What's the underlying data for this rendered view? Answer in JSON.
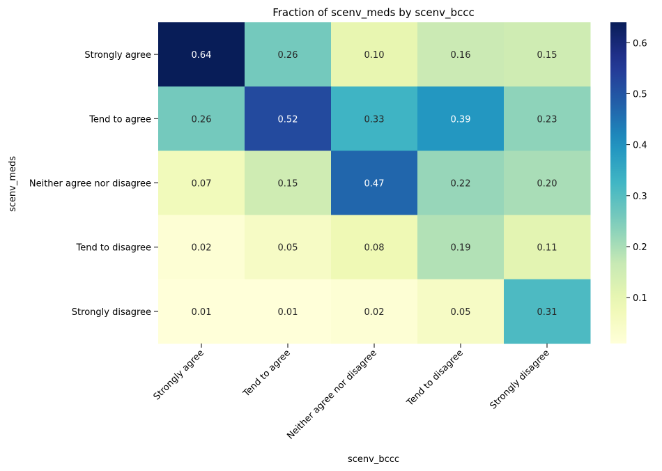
{
  "chart_data": {
    "type": "heatmap",
    "title": "Fraction of scenv_meds by scenv_bccc",
    "xlabel": "scenv_bccc",
    "ylabel": "scenv_meds",
    "x_categories": [
      "Strongly agree",
      "Tend to agree",
      "Neither agree nor disagree",
      "Tend to disagree",
      "Strongly disagree"
    ],
    "y_categories": [
      "Strongly agree",
      "Tend to agree",
      "Neither agree nor disagree",
      "Tend to disagree",
      "Strongly disagree"
    ],
    "values": [
      [
        0.64,
        0.26,
        0.1,
        0.16,
        0.15
      ],
      [
        0.26,
        0.52,
        0.33,
        0.39,
        0.23
      ],
      [
        0.07,
        0.15,
        0.47,
        0.22,
        0.2
      ],
      [
        0.02,
        0.05,
        0.08,
        0.19,
        0.11
      ],
      [
        0.01,
        0.01,
        0.02,
        0.05,
        0.31
      ]
    ],
    "colormap": "YlGnBu",
    "colorbar": {
      "vmin": 0.01,
      "vmax": 0.64,
      "ticks": [
        0.1,
        0.2,
        0.3,
        0.4,
        0.5,
        0.6
      ],
      "tick_labels": [
        "0.1",
        "0.2",
        "0.3",
        "0.4",
        "0.5",
        "0.6"
      ]
    }
  }
}
